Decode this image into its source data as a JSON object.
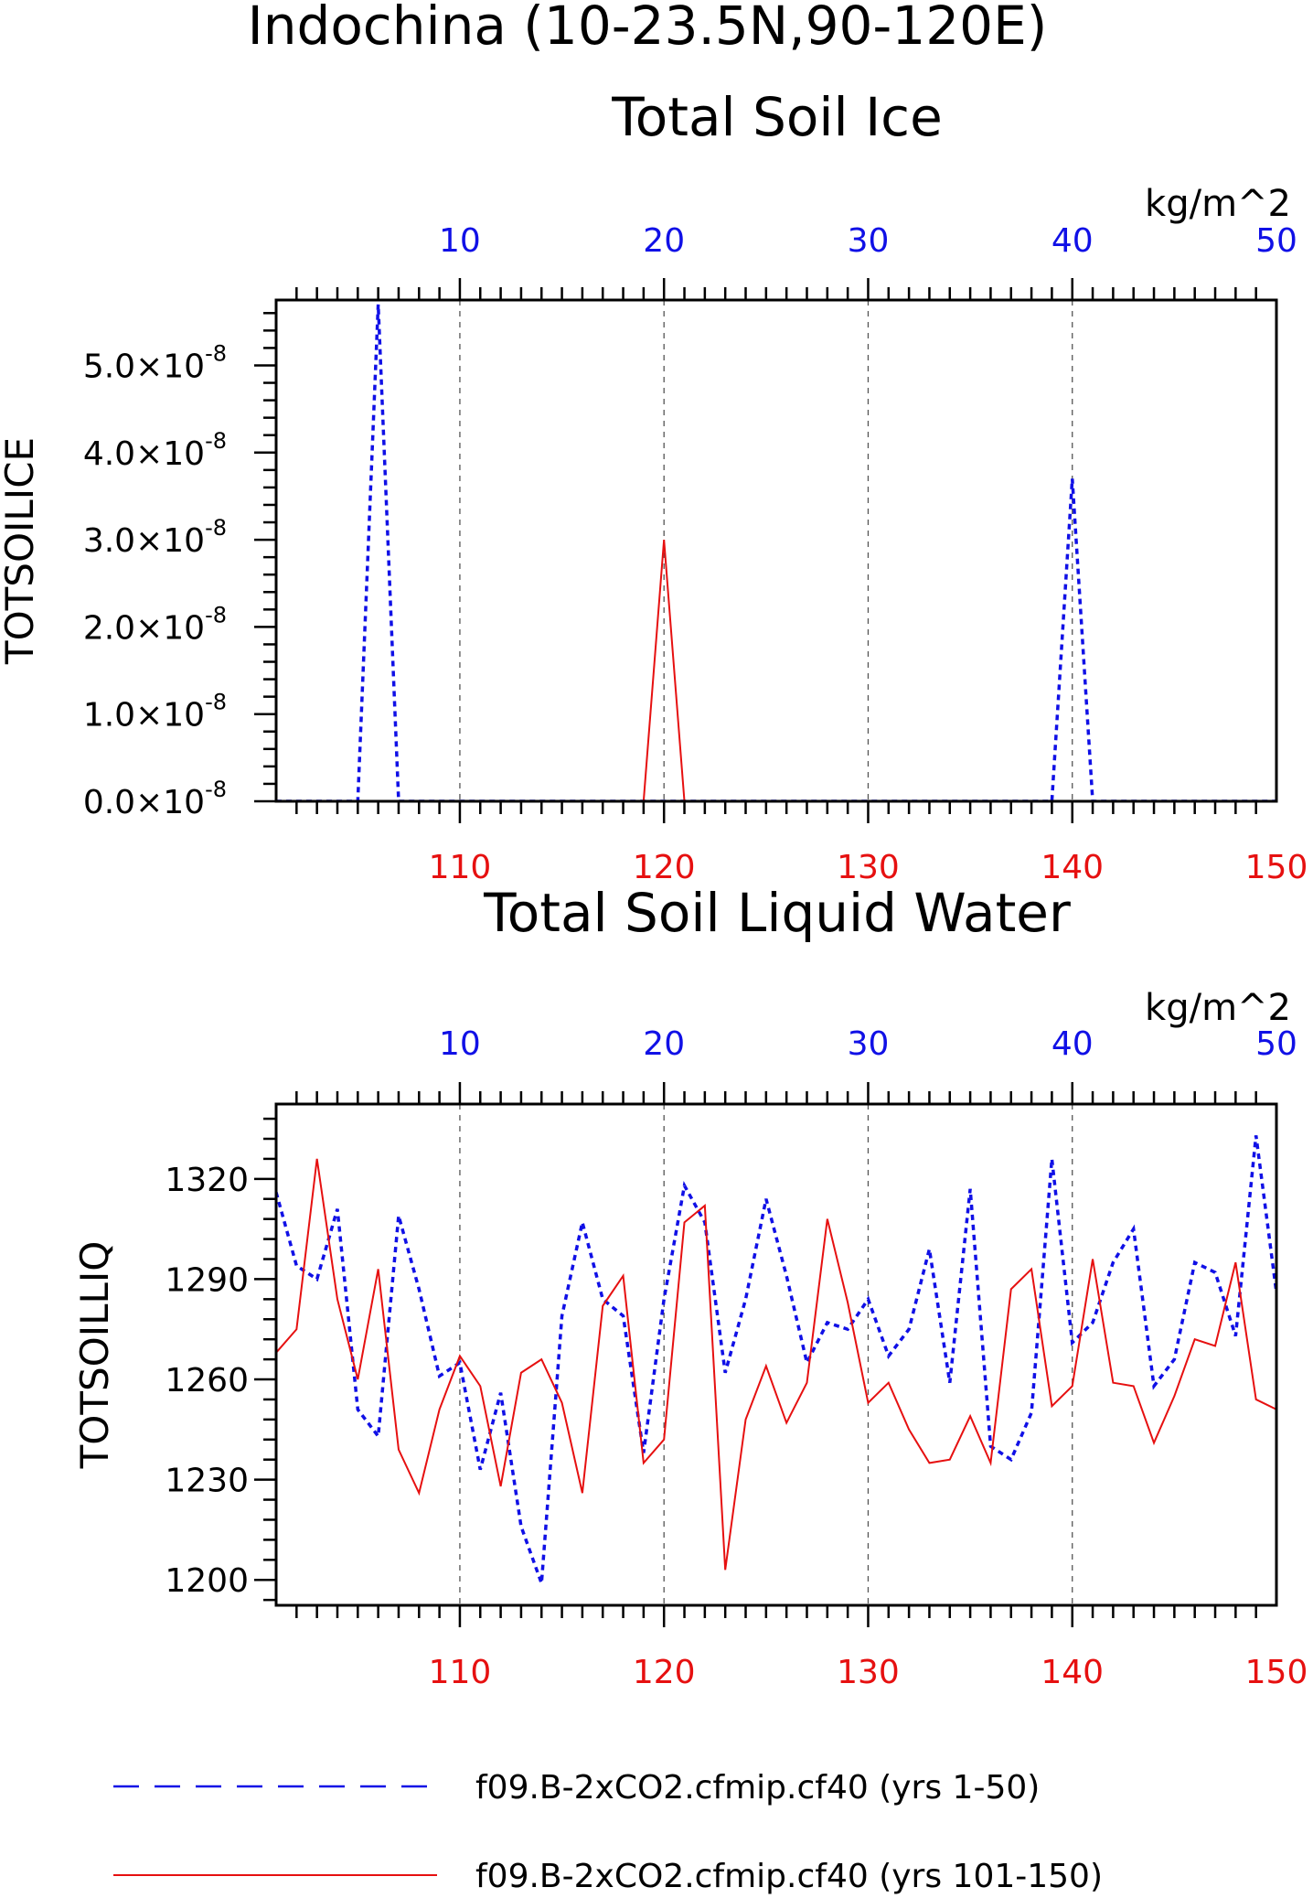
{
  "title": "Indochina (10-23.5N,90-120E)",
  "colors": {
    "blue": "#1010e6",
    "red": "#e61010",
    "axis": "#000000",
    "grid": "#555555"
  },
  "legend": {
    "items": [
      {
        "label": "f09.B-2xCO2.cfmip.cf40 (yrs 1-50)",
        "color": "#1010e6",
        "style": "dashed"
      },
      {
        "label": "f09.B-2xCO2.cfmip.cf40 (yrs 101-150)",
        "color": "#e61010",
        "style": "solid"
      }
    ]
  },
  "chart_data": [
    {
      "type": "line",
      "title": "Total Soil Ice",
      "ylabel": "TOTSOILICE",
      "units": "kg/m^2",
      "grid": "dashed vertical",
      "top_axis": {
        "label_color": "blue",
        "range": [
          1,
          50
        ],
        "ticks": [
          10,
          20,
          30,
          40,
          50
        ]
      },
      "bottom_axis": {
        "label_color": "red",
        "range": [
          101,
          150
        ],
        "ticks": [
          110,
          120,
          130,
          140,
          150
        ]
      },
      "ylim": [
        0,
        5.75e-08
      ],
      "y_ticks": [
        0,
        1e-08,
        2e-08,
        3e-08,
        4e-08,
        5e-08
      ],
      "y_tick_labels": [
        "0.0×10",
        "1.0×10",
        "2.0×10",
        "3.0×10",
        "4.0×10",
        "5.0×10"
      ],
      "y_tick_exponent": "-8",
      "series": [
        {
          "style": "dashed",
          "color": "blue",
          "x": [
            1,
            2,
            3,
            4,
            5,
            6,
            7,
            8,
            9,
            10,
            11,
            12,
            13,
            14,
            15,
            16,
            17,
            18,
            19,
            20,
            21,
            22,
            23,
            24,
            25,
            26,
            27,
            28,
            29,
            30,
            31,
            32,
            33,
            34,
            35,
            36,
            37,
            38,
            39,
            40,
            41,
            42,
            43,
            44,
            45,
            46,
            47,
            48,
            49,
            50
          ],
          "values": [
            0,
            0,
            0,
            0,
            0,
            5.7e-08,
            0,
            0,
            0,
            0,
            0,
            0,
            0,
            0,
            0,
            0,
            0,
            0,
            0,
            0,
            0,
            0,
            0,
            0,
            0,
            0,
            0,
            0,
            0,
            0,
            0,
            0,
            0,
            0,
            0,
            0,
            0,
            0,
            0,
            3.7e-08,
            0,
            0,
            0,
            0,
            0,
            0,
            0,
            0,
            0,
            0
          ]
        },
        {
          "style": "solid",
          "color": "red",
          "x": [
            101,
            102,
            103,
            104,
            105,
            106,
            107,
            108,
            109,
            110,
            111,
            112,
            113,
            114,
            115,
            116,
            117,
            118,
            119,
            120,
            121,
            122,
            123,
            124,
            125,
            126,
            127,
            128,
            129,
            130,
            131,
            132,
            133,
            134,
            135,
            136,
            137,
            138,
            139,
            140,
            141,
            142,
            143,
            144,
            145,
            146,
            147,
            148,
            149,
            150
          ],
          "values": [
            0,
            0,
            0,
            0,
            0,
            0,
            0,
            0,
            0,
            0,
            0,
            0,
            0,
            0,
            0,
            0,
            0,
            0,
            0,
            3e-08,
            0,
            0,
            0,
            0,
            0,
            0,
            0,
            0,
            0,
            0,
            0,
            0,
            0,
            0,
            0,
            0,
            0,
            0,
            0,
            0,
            0,
            0,
            0,
            0,
            0,
            0,
            0,
            0,
            0,
            0
          ]
        }
      ]
    },
    {
      "type": "line",
      "title": "Total Soil Liquid Water",
      "ylabel": "TOTSOILLIQ",
      "units": "kg/m^2",
      "grid": "dashed vertical",
      "top_axis": {
        "label_color": "blue",
        "range": [
          1,
          50
        ],
        "ticks": [
          10,
          20,
          30,
          40,
          50
        ]
      },
      "bottom_axis": {
        "label_color": "red",
        "range": [
          101,
          150
        ],
        "ticks": [
          110,
          120,
          130,
          140,
          150
        ]
      },
      "ylim": [
        1192.4,
        1342.4
      ],
      "y_ticks": [
        1200,
        1230,
        1260,
        1290,
        1320
      ],
      "y_tick_labels": [
        "1200",
        "1230",
        "1260",
        "1290",
        "1320"
      ],
      "series": [
        {
          "style": "dashed",
          "color": "blue",
          "x": [
            1,
            2,
            3,
            4,
            5,
            6,
            7,
            8,
            9,
            10,
            11,
            12,
            13,
            14,
            15,
            16,
            17,
            18,
            19,
            20,
            21,
            22,
            23,
            24,
            25,
            26,
            27,
            28,
            29,
            30,
            31,
            32,
            33,
            34,
            35,
            36,
            37,
            38,
            39,
            40,
            41,
            42,
            43,
            44,
            45,
            46,
            47,
            48,
            49,
            50
          ],
          "values": [
            1316,
            1294,
            1290,
            1311,
            1251,
            1243,
            1309,
            1287,
            1261,
            1265,
            1233,
            1256,
            1216,
            1199,
            1279,
            1307,
            1284,
            1279,
            1238,
            1284,
            1318,
            1307,
            1262,
            1284,
            1314,
            1291,
            1265,
            1277,
            1275,
            1284,
            1267,
            1275,
            1299,
            1259,
            1317,
            1240,
            1236,
            1250,
            1326,
            1271,
            1277,
            1295,
            1305,
            1258,
            1266,
            1295,
            1292,
            1273,
            1333,
            1286
          ]
        },
        {
          "style": "solid",
          "color": "red",
          "x": [
            101,
            102,
            103,
            104,
            105,
            106,
            107,
            108,
            109,
            110,
            111,
            112,
            113,
            114,
            115,
            116,
            117,
            118,
            119,
            120,
            121,
            122,
            123,
            124,
            125,
            126,
            127,
            128,
            129,
            130,
            131,
            132,
            133,
            134,
            135,
            136,
            137,
            138,
            139,
            140,
            141,
            142,
            143,
            144,
            145,
            146,
            147,
            148,
            149,
            150
          ],
          "values": [
            1268,
            1275,
            1326,
            1284,
            1260,
            1293,
            1239,
            1226,
            1251,
            1267,
            1258,
            1228,
            1262,
            1266,
            1253,
            1226,
            1282,
            1291,
            1235,
            1242,
            1307,
            1312,
            1203,
            1248,
            1264,
            1247,
            1259,
            1308,
            1283,
            1253,
            1259,
            1245,
            1235,
            1236,
            1249,
            1235,
            1287,
            1293,
            1252,
            1258,
            1296,
            1259,
            1258,
            1241,
            1255,
            1272,
            1270,
            1295,
            1254,
            1251
          ]
        }
      ]
    }
  ]
}
